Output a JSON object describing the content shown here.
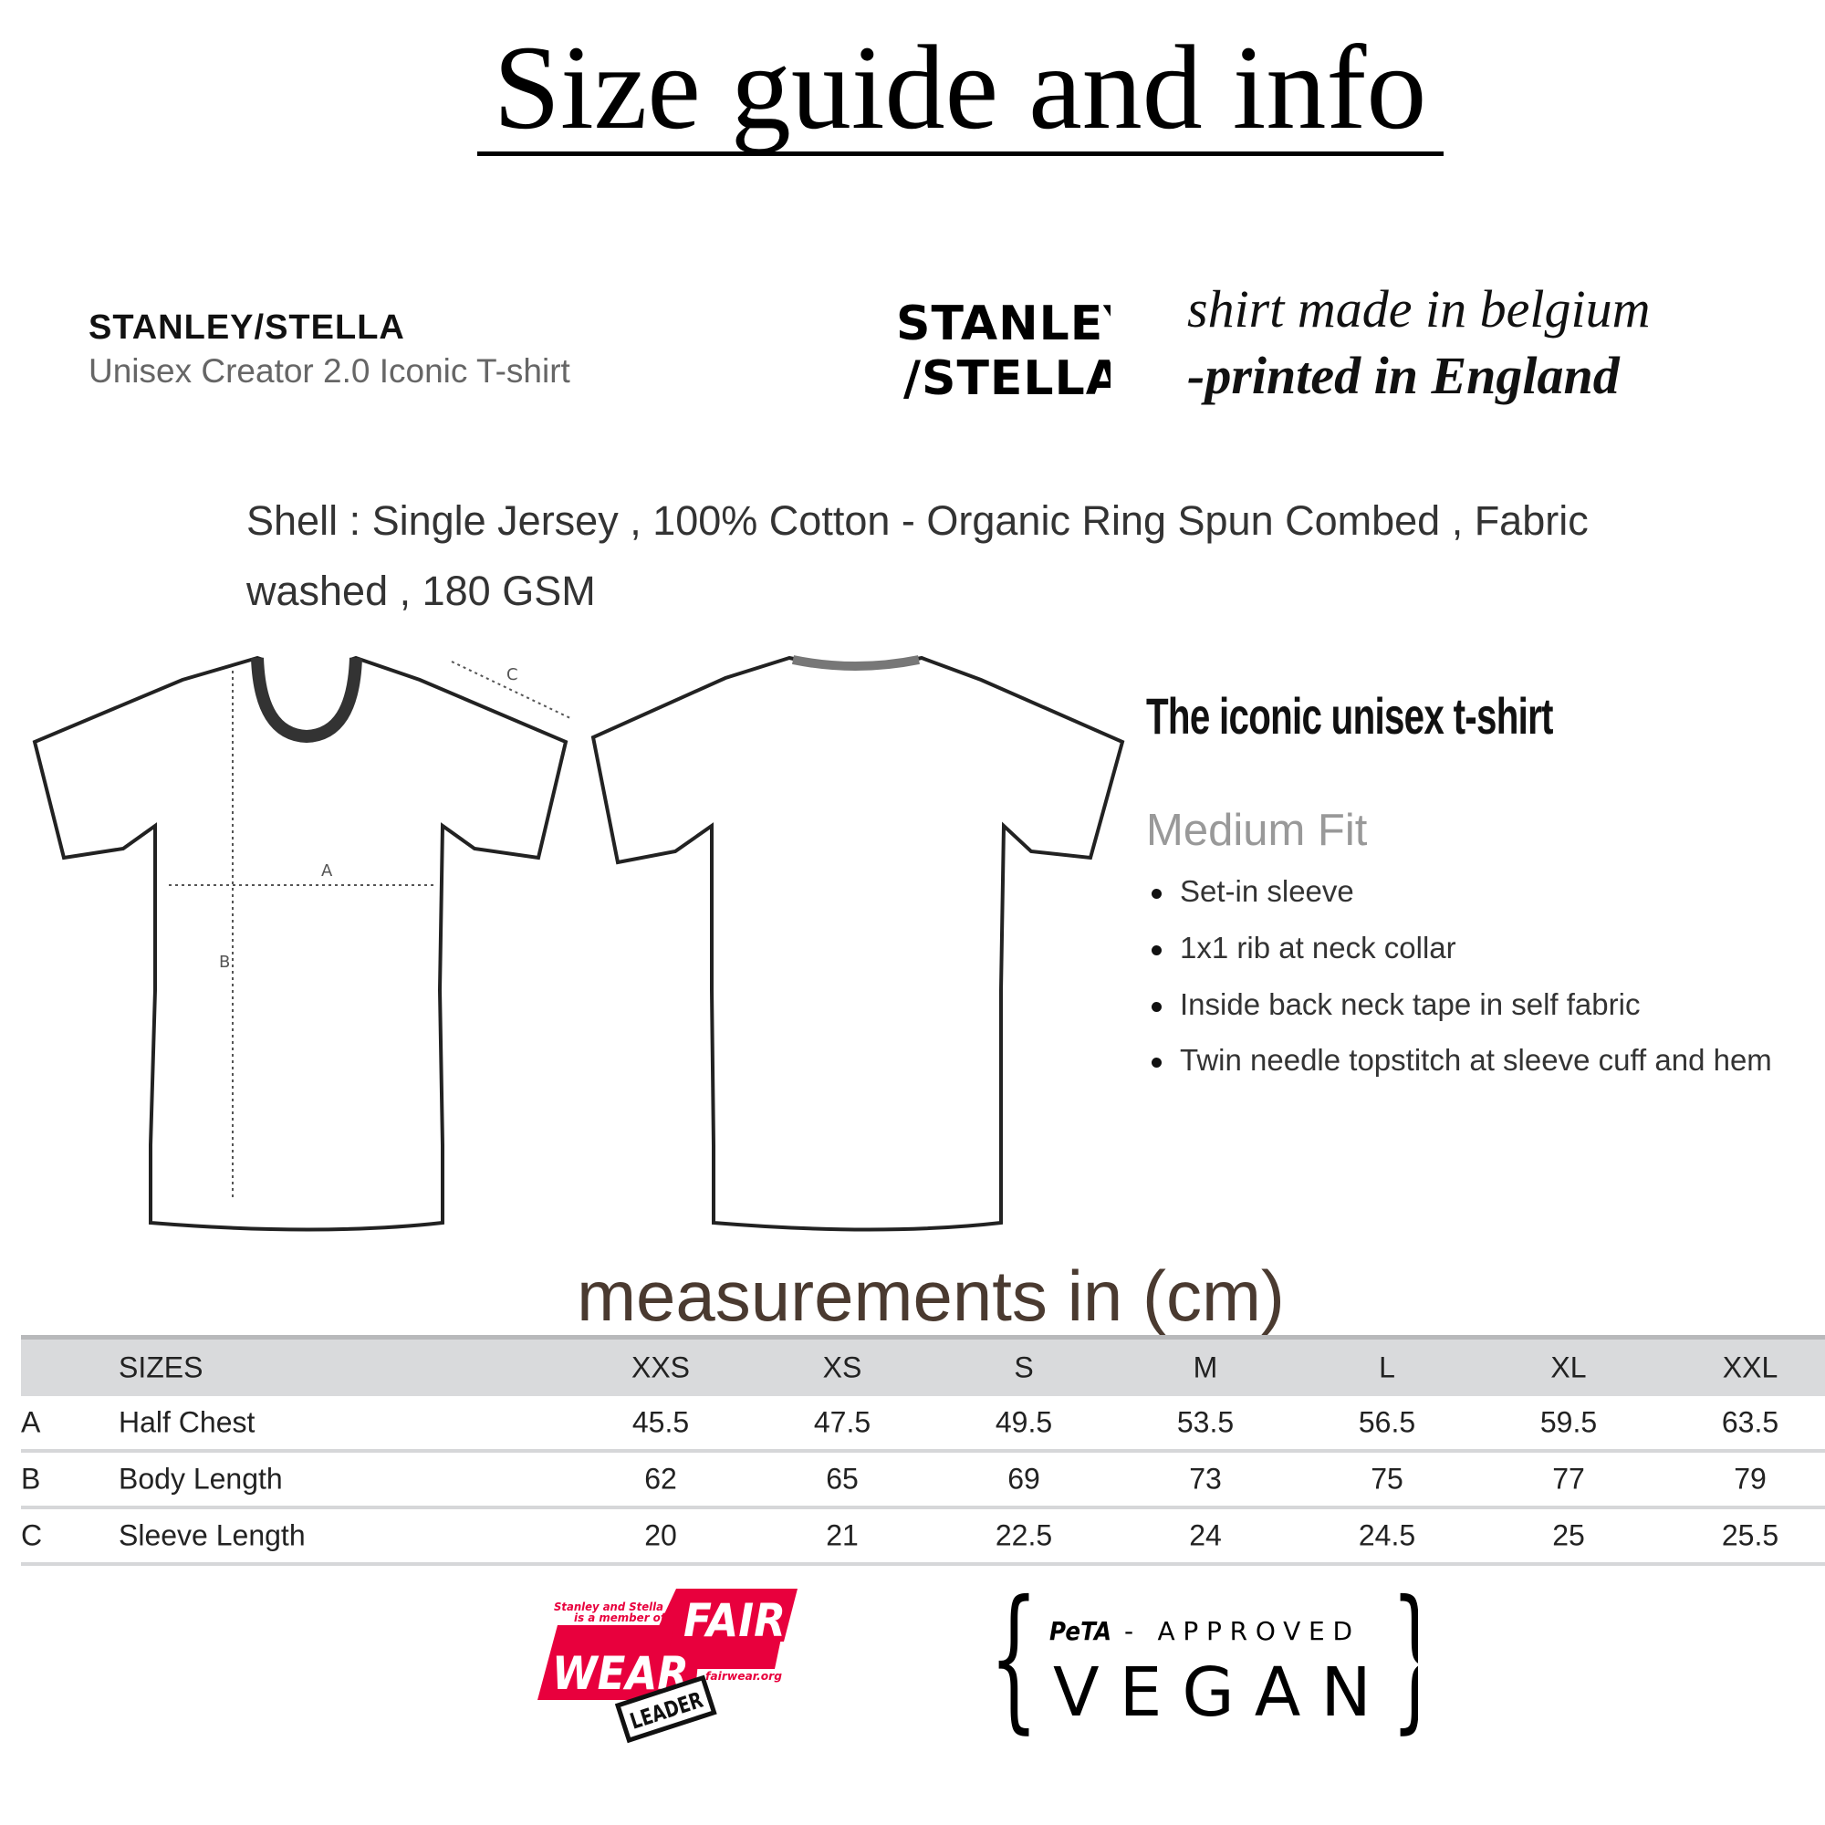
{
  "title": "Size guide and info",
  "brand": {
    "name": "STANLEY/STELLA",
    "model": "Unisex Creator 2.0 Iconic T-shirt",
    "logo_text": [
      "STANLEY",
      "/STELLA"
    ]
  },
  "origin": {
    "line1": "shirt made in belgium",
    "line2": "-printed in England"
  },
  "shell_text": "Shell : Single Jersey , 100% Cotton - Organic Ring Spun Combed , Fabric washed , 180 GSM",
  "diagram": {
    "labels": [
      "A",
      "B",
      "C"
    ]
  },
  "features": {
    "title": "The iconic unisex t-shirt",
    "fit": "Medium Fit",
    "items": [
      "Set-in sleeve",
      "1x1 rib at neck collar",
      "Inside back neck tape in self fabric",
      "Twin needle topstitch at sleeve cuff and hem"
    ]
  },
  "measurements_heading": "measurements in (cm)",
  "size_table": {
    "header_label": "SIZES",
    "sizes": [
      "XXS",
      "XS",
      "S",
      "M",
      "L",
      "XL",
      "XXL"
    ],
    "rows": [
      {
        "code": "A",
        "label": "Half Chest",
        "values": [
          "45.5",
          "47.5",
          "49.5",
          "53.5",
          "56.5",
          "59.5",
          "63.5"
        ]
      },
      {
        "code": "B",
        "label": "Body Length",
        "values": [
          "62",
          "65",
          "69",
          "73",
          "75",
          "77",
          "79"
        ]
      },
      {
        "code": "C",
        "label": "Sleeve Length",
        "values": [
          "20",
          "21",
          "22.5",
          "24",
          "24.5",
          "25",
          "25.5"
        ]
      }
    ]
  },
  "badges": {
    "fairwear": {
      "member_text": [
        "Stanley and Stella",
        "is a member of"
      ],
      "fair": "FAIR",
      "wear": "WEAR",
      "url": "fairwear.org",
      "leader": "LEADER",
      "color": "#e8003d"
    },
    "peta": {
      "peta": "PeTA",
      "approved": "- APPROVED",
      "vegan": "VEGAN"
    }
  }
}
